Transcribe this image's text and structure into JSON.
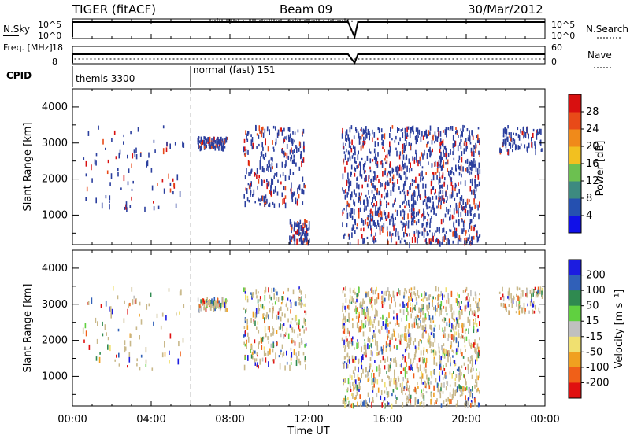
{
  "header": {
    "station": "TIGER (fitACF)",
    "beam": "Beam 09",
    "date": "30/Mar/2012"
  },
  "colors": {
    "background": "#ffffff",
    "axes": "#000000",
    "scatter_power": "#2b3f9e",
    "scatter_velocity_low": "#c9b88a"
  },
  "chart_data": [
    {
      "type": "line",
      "panel": "noise",
      "left_label": "N.Sky",
      "right_label": "N.Search",
      "left_ticks": [
        "10^5",
        "10^0"
      ],
      "right_ticks": [
        "10^5",
        "10^0"
      ],
      "x": [
        "00:00",
        "01:00",
        "02:00",
        "03:00",
        "04:00",
        "05:00",
        "06:00",
        "07:00",
        "08:00",
        "09:00",
        "10:00",
        "11:00",
        "12:00",
        "13:00",
        "14:00",
        "14:20",
        "14:30",
        "15:00",
        "16:00",
        "17:00",
        "18:00",
        "19:00",
        "20:00",
        "21:00",
        "22:00",
        "23:00",
        "24:00"
      ],
      "series": [
        {
          "values": [
            100000,
            100000,
            100000,
            100000,
            100000,
            100000,
            100000,
            100000,
            100000,
            100000,
            100000,
            100000,
            100000,
            100000,
            100000,
            1,
            100000,
            100000,
            100000,
            100000,
            100000,
            100000,
            100000,
            100000,
            100000,
            100000,
            100000
          ]
        }
      ],
      "log_scale": true
    },
    {
      "type": "line",
      "panel": "frequency",
      "left_label": "Freq. [MHz]",
      "right_label": "Nave",
      "left_ticks": [
        "18",
        "8"
      ],
      "right_ticks": [
        "60",
        "0"
      ],
      "series": [
        {
          "values_mhz": [
            12,
            12,
            12,
            12,
            12,
            12,
            12,
            12,
            12,
            12,
            12,
            12,
            12,
            12,
            12,
            8,
            12,
            12,
            12,
            12,
            12,
            12,
            12,
            12,
            12,
            12,
            12
          ]
        }
      ]
    },
    {
      "type": "table",
      "panel": "cpid",
      "label": "CPID",
      "segments": [
        {
          "start": "00:00",
          "end": "06:00",
          "text": "themis 3300"
        },
        {
          "start": "06:00",
          "end": "24:00",
          "text": "normal (fast) 151"
        }
      ]
    },
    {
      "type": "heatmap",
      "panel": "power",
      "ylabel": "Slant Range [km]",
      "xlabel": "",
      "ylim": [
        180,
        4500
      ],
      "y_ticks": [
        1000,
        2000,
        3000,
        4000
      ],
      "colorbar": {
        "label": "Power [dB]",
        "ticks": [
          4,
          8,
          12,
          16,
          20,
          24,
          28
        ],
        "colors": [
          "#1010e8",
          "#2550b0",
          "#3d8a80",
          "#6cc050",
          "#f2c020",
          "#f08a1a",
          "#e84a18",
          "#d81010"
        ]
      },
      "echo_regions": [
        {
          "start": "00:30",
          "end": "05:40",
          "range_km": [
            1200,
            3500
          ],
          "density": "sparse"
        },
        {
          "start": "06:20",
          "end": "07:50",
          "range_km": [
            2900,
            3200
          ],
          "density": "sparse"
        },
        {
          "start": "08:40",
          "end": "11:50",
          "range_km": [
            1300,
            3500
          ],
          "density": "medium"
        },
        {
          "start": "11:00",
          "end": "12:00",
          "range_km": [
            300,
            900
          ],
          "density": "sparse"
        },
        {
          "start": "13:40",
          "end": "20:40",
          "range_km": [
            250,
            3500
          ],
          "density": "dense"
        },
        {
          "start": "21:40",
          "end": "23:50",
          "range_km": [
            2800,
            3500
          ],
          "density": "sparse"
        }
      ]
    },
    {
      "type": "heatmap",
      "panel": "velocity",
      "ylabel": "Slant Range [km]",
      "xlabel": "Time UT",
      "ylim": [
        180,
        4500
      ],
      "y_ticks": [
        1000,
        2000,
        3000,
        4000
      ],
      "x_ticks": [
        "00:00",
        "04:00",
        "08:00",
        "12:00",
        "16:00",
        "20:00",
        "00:00"
      ],
      "colorbar": {
        "label": "Velocity [m s⁻¹]",
        "ticks": [
          200,
          100,
          50,
          15,
          -15,
          -50,
          -100,
          -200
        ],
        "colors": [
          "#1c1ce0",
          "#3060b8",
          "#2f8a50",
          "#60d040",
          "#c0c0c0",
          "#f0e070",
          "#f0a020",
          "#f06018",
          "#e01010"
        ]
      },
      "echo_regions": [
        {
          "start": "00:30",
          "end": "05:40",
          "range_km": [
            1200,
            3500
          ],
          "density": "sparse"
        },
        {
          "start": "06:20",
          "end": "07:50",
          "range_km": [
            2900,
            3200
          ],
          "density": "sparse"
        },
        {
          "start": "08:40",
          "end": "11:50",
          "range_km": [
            1300,
            3500
          ],
          "density": "medium"
        },
        {
          "start": "13:40",
          "end": "20:40",
          "range_km": [
            250,
            3500
          ],
          "density": "dense"
        },
        {
          "start": "21:40",
          "end": "23:50",
          "range_km": [
            2800,
            3500
          ],
          "density": "sparse"
        }
      ]
    }
  ]
}
